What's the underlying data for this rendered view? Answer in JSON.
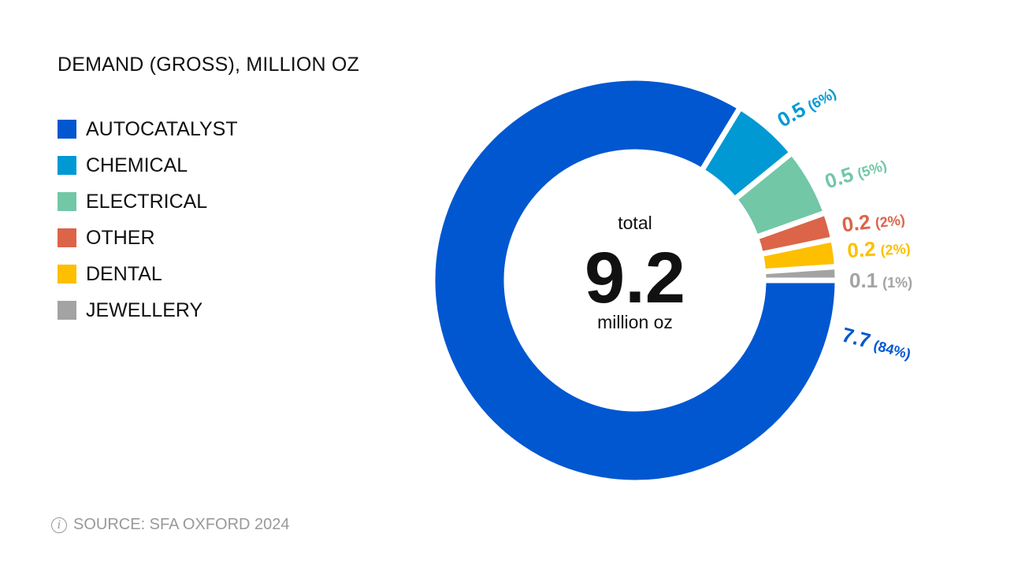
{
  "chart_data": {
    "type": "pie",
    "donut": true,
    "title": "DEMAND (GROSS), MILLION OZ",
    "legend_position": "left",
    "center": {
      "caption_top": "total",
      "value": "9.2",
      "caption_bottom": "million oz"
    },
    "slices": [
      {
        "name": "AUTOCATALYST",
        "value": 7.7,
        "label": "7.7",
        "percent": "(84%)",
        "color": "#0057d0"
      },
      {
        "name": "CHEMICAL",
        "value": 0.5,
        "label": "0.5",
        "percent": "(6%)",
        "color": "#0099d4"
      },
      {
        "name": "ELECTRICAL",
        "value": 0.5,
        "label": "0.5",
        "percent": "(5%)",
        "color": "#72c7a7"
      },
      {
        "name": "OTHER",
        "value": 0.2,
        "label": "0.2",
        "percent": "(2%)",
        "color": "#dc6449"
      },
      {
        "name": "DENTAL",
        "value": 0.2,
        "label": "0.2",
        "percent": "(2%)",
        "color": "#fdbf00"
      },
      {
        "name": "JEWELLERY",
        "value": 0.1,
        "label": "0.1",
        "percent": "(1%)",
        "color": "#a3a3a3"
      }
    ]
  },
  "footer": {
    "source": "SOURCE: SFA OXFORD 2024",
    "icon": "info-icon"
  }
}
